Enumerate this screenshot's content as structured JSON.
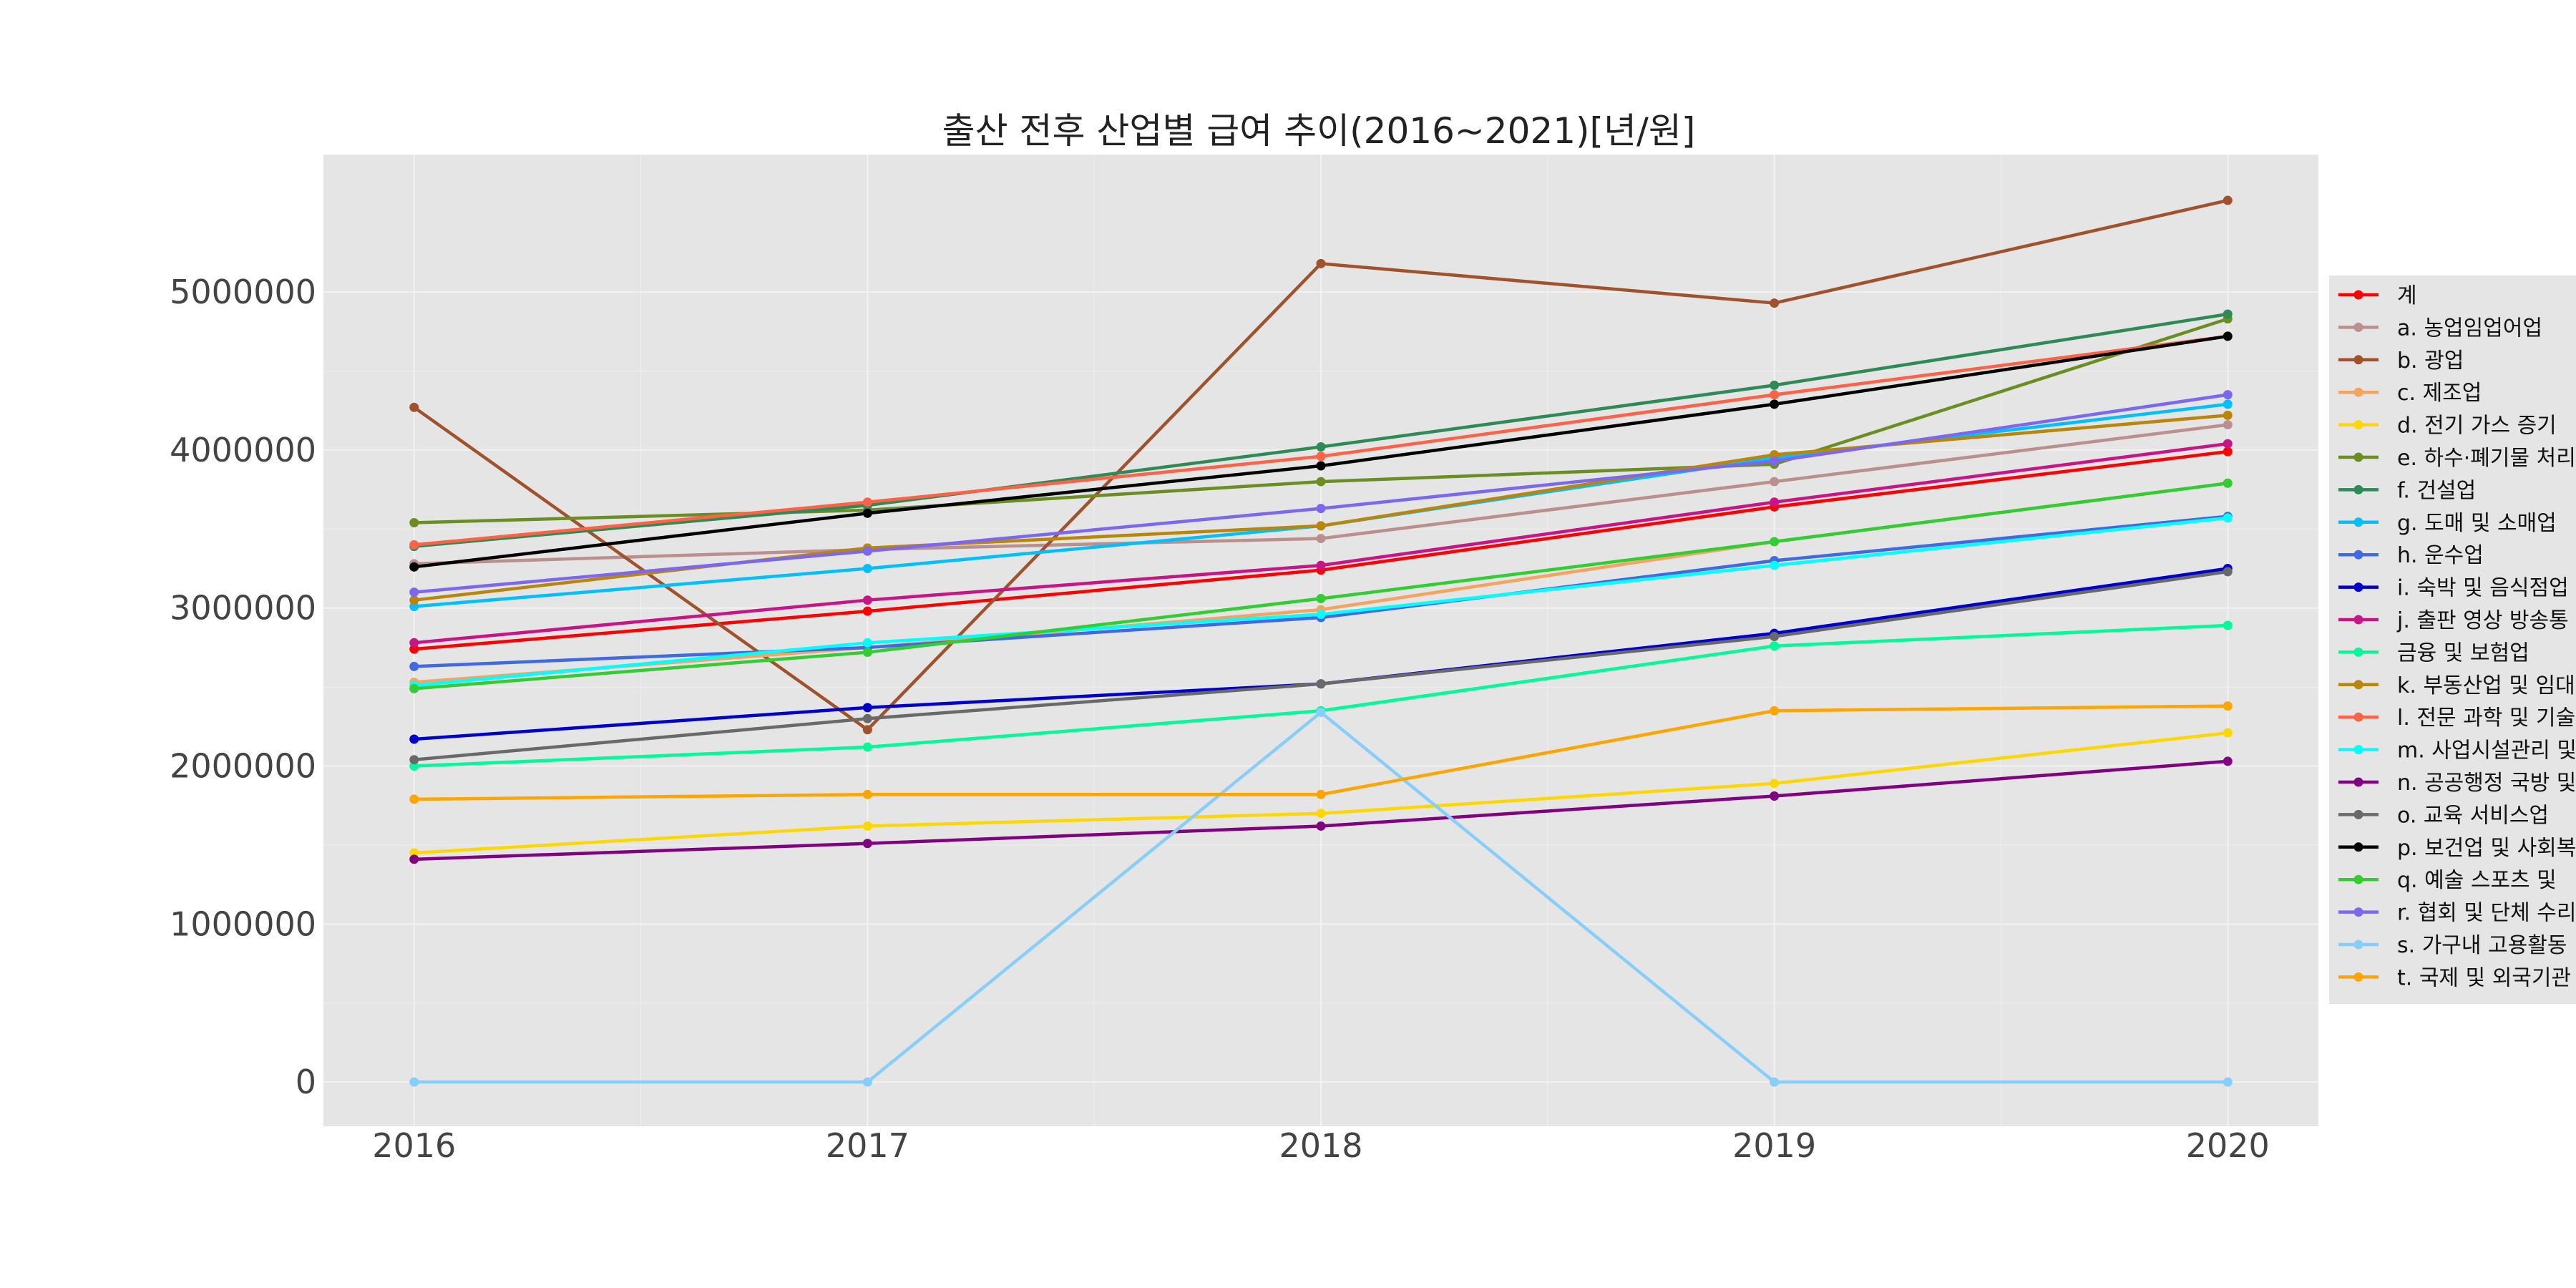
{
  "chart_data": {
    "type": "line",
    "title": "출산 전후 산업별 급여 추이(2016~2021)[년/원]",
    "xlabel": "",
    "ylabel": "",
    "x": [
      2016,
      2017,
      2018,
      2019,
      2020
    ],
    "x_tick_labels": [
      "2016",
      "2017",
      "2018",
      "2019",
      "2020"
    ],
    "xlim": [
      2015.8,
      2020.2
    ],
    "ylim": [
      -280000,
      5870000
    ],
    "y_ticks": [
      0,
      1000000,
      2000000,
      3000000,
      4000000,
      5000000
    ],
    "y_tick_labels": [
      "0",
      "1000000",
      "2000000",
      "3000000",
      "4000000",
      "5000000"
    ],
    "grid": true,
    "legend_position": "right",
    "background": "#e5e5e5",
    "series": [
      {
        "name": "계",
        "color": "#ff0000",
        "values": [
          2740000,
          2980000,
          3240000,
          3640000,
          3990000
        ]
      },
      {
        "name": "a. 농업임업어업",
        "color": "#bc8f8f",
        "values": [
          3280000,
          3370000,
          3440000,
          3800000,
          4160000
        ]
      },
      {
        "name": "b. 광업",
        "color": "#a0522d",
        "values": [
          4270000,
          2230000,
          5180000,
          4930000,
          5580000
        ]
      },
      {
        "name": "c. 제조업",
        "color": "#f4a460",
        "values": [
          2530000,
          2750000,
          2990000,
          3420000,
          3790000
        ]
      },
      {
        "name": "d. 전기 가스 증기",
        "color": "#ffd700",
        "values": [
          1450000,
          1620000,
          1700000,
          1890000,
          2210000
        ]
      },
      {
        "name": "e. 하수·폐기물 처리",
        "color": "#6b8e23",
        "values": [
          3540000,
          3620000,
          3800000,
          3910000,
          4830000
        ]
      },
      {
        "name": "f. 건설업",
        "color": "#2e8b57",
        "values": [
          3390000,
          3650000,
          4020000,
          4410000,
          4860000
        ]
      },
      {
        "name": "g. 도매 및 소매업",
        "color": "#00bfff",
        "values": [
          3010000,
          3250000,
          3520000,
          3950000,
          4290000
        ]
      },
      {
        "name": "h. 운수업",
        "color": "#4169e1",
        "values": [
          2630000,
          2750000,
          2940000,
          3300000,
          3580000
        ]
      },
      {
        "name": "i. 숙박 및 음식점업",
        "color": "#0000cd",
        "values": [
          2170000,
          2370000,
          2520000,
          2840000,
          3250000
        ]
      },
      {
        "name": "j. 출판 영상 방송통",
        "color": "#c71585",
        "values": [
          2780000,
          3050000,
          3270000,
          3670000,
          4040000
        ]
      },
      {
        "name": "금융 및 보험업",
        "color": "#00fa9a",
        "values": [
          2000000,
          2120000,
          2350000,
          2760000,
          2890000
        ]
      },
      {
        "name": "k. 부동산업 및 임대",
        "color": "#b8860b",
        "values": [
          3050000,
          3380000,
          3520000,
          3970000,
          4220000
        ]
      },
      {
        "name": "l. 전문 과학 및 기술",
        "color": "#ff6347",
        "values": [
          3400000,
          3670000,
          3960000,
          4350000,
          4720000
        ]
      },
      {
        "name": "m. 사업시설관리 및",
        "color": "#00ffff",
        "values": [
          2510000,
          2780000,
          2960000,
          3270000,
          3570000
        ]
      },
      {
        "name": "n. 공공행정 국방 및",
        "color": "#800080",
        "values": [
          1410000,
          1510000,
          1620000,
          1810000,
          2030000
        ]
      },
      {
        "name": "o. 교육 서비스업",
        "color": "#696969",
        "values": [
          2040000,
          2300000,
          2520000,
          2820000,
          3230000
        ]
      },
      {
        "name": "p. 보건업 및 사회복",
        "color": "#000000",
        "values": [
          3260000,
          3600000,
          3900000,
          4290000,
          4720000
        ]
      },
      {
        "name": "q. 예술 스포츠 및",
        "color": "#32cd32",
        "values": [
          2490000,
          2720000,
          3060000,
          3420000,
          3790000
        ]
      },
      {
        "name": "r. 협회 및 단체 수리",
        "color": "#7b68ee",
        "values": [
          3100000,
          3360000,
          3630000,
          3930000,
          4350000
        ]
      },
      {
        "name": "s. 가구내 고용활동",
        "color": "#87cefa",
        "values": [
          0,
          0,
          2340000,
          0,
          0
        ]
      },
      {
        "name": "t. 국제 및 외국기관",
        "color": "#ffa500",
        "values": [
          1790000,
          1820000,
          1820000,
          2350000,
          2380000
        ]
      }
    ]
  }
}
